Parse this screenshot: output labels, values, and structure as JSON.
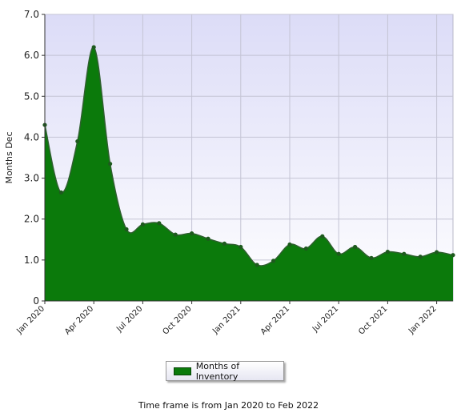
{
  "chart_data": {
    "type": "area",
    "ylabel": "Months Dec",
    "xlabel": "",
    "ylim": [
      0,
      7
    ],
    "yticks": [
      "0",
      "1.0",
      "2.0",
      "3.0",
      "4.0",
      "5.0",
      "6.0",
      "7.0"
    ],
    "ytick_values": [
      0,
      1,
      2,
      3,
      4,
      5,
      6,
      7
    ],
    "xtick_labels": [
      "Jan 2020",
      "Apr 2020",
      "Jul 2020",
      "Oct 2020",
      "Jan 2021",
      "Apr 2021",
      "Jul 2021",
      "Oct 2021",
      "Jan 2022"
    ],
    "xtick_months": [
      0,
      3,
      6,
      9,
      12,
      15,
      18,
      21,
      24
    ],
    "x_months": [
      0,
      1,
      2,
      3,
      4,
      5,
      6,
      7,
      8,
      9,
      10,
      11,
      12,
      13,
      14,
      15,
      16,
      17,
      18,
      19,
      20,
      21,
      22,
      23,
      24,
      25
    ],
    "series": [
      {
        "name": "Months of Inventory",
        "color": "#0b7a0b",
        "values": [
          4.3,
          2.65,
          3.9,
          6.2,
          3.35,
          1.75,
          1.87,
          1.9,
          1.62,
          1.65,
          1.52,
          1.4,
          1.32,
          0.88,
          0.98,
          1.38,
          1.28,
          1.58,
          1.15,
          1.32,
          1.05,
          1.2,
          1.15,
          1.08,
          1.19,
          1.12
        ]
      }
    ],
    "grid": true,
    "legend_position": "bottom"
  },
  "legend": {
    "label": "Months of Inventory"
  },
  "footnote": "Time frame is from Jan 2020 to Feb 2022"
}
